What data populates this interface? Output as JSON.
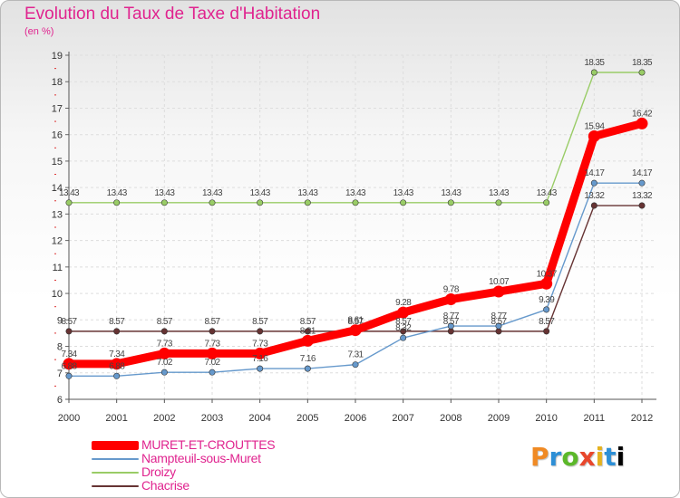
{
  "header": {
    "title": "Evolution du Taux de Taxe d'Habitation",
    "subtitle": "(en %)"
  },
  "logo": {
    "letters": [
      "P",
      "r",
      "o",
      "x",
      "i",
      "t",
      "i"
    ]
  },
  "chart_data": {
    "type": "line",
    "title": "Evolution du Taux de Taxe d'Habitation",
    "subtitle": "(en %)",
    "xlabel": "",
    "ylabel": "",
    "x": [
      "2000",
      "2001",
      "2002",
      "2003",
      "2004",
      "2005",
      "2006",
      "2007",
      "2008",
      "2009",
      "2010",
      "2011",
      "2012"
    ],
    "ylim": [
      6,
      19
    ],
    "yticks": [
      "6",
      "7",
      "8",
      "9",
      "10",
      "11",
      "12",
      "13",
      "14",
      "15",
      "16",
      "17",
      "18",
      "19"
    ],
    "grid": true,
    "legend_position": "bottom-left",
    "series": [
      {
        "name": "MURET-ET-CROUTTES",
        "color": "#ff0000",
        "emphasis": true,
        "values": [
          7.34,
          7.34,
          7.73,
          7.73,
          7.73,
          8.21,
          8.61,
          9.28,
          9.78,
          10.07,
          10.37,
          15.94,
          16.42
        ],
        "labels": [
          "7.34",
          "7.34",
          "7.73",
          "7.73",
          "7.73",
          "8.21",
          "8.61",
          "9.28",
          "9.78",
          "10.07",
          "10.37",
          "15.94",
          "16.42"
        ]
      },
      {
        "name": "Nampteuil-sous-Muret",
        "color": "#6699cc",
        "values": [
          6.88,
          6.88,
          7.02,
          7.02,
          7.16,
          7.16,
          7.31,
          8.32,
          8.77,
          8.77,
          9.39,
          14.17,
          14.17
        ],
        "labels": [
          "6.88",
          "6.88",
          "7.02",
          "7.02",
          "7.16",
          "7.16",
          "7.31",
          "8.32",
          "8.77",
          "8.77",
          "9.39",
          "14.17",
          "14.17"
        ]
      },
      {
        "name": "Droizy",
        "color": "#99cc66",
        "values": [
          13.43,
          13.43,
          13.43,
          13.43,
          13.43,
          13.43,
          13.43,
          13.43,
          13.43,
          13.43,
          13.43,
          18.35,
          18.35
        ],
        "labels": [
          "13.43",
          "13.43",
          "13.43",
          "13.43",
          "13.43",
          "13.43",
          "13.43",
          "13.43",
          "13.43",
          "13.43",
          "13.43",
          "18.35",
          "18.35"
        ]
      },
      {
        "name": "Chacrise",
        "color": "#663333",
        "values": [
          8.57,
          8.57,
          8.57,
          8.57,
          8.57,
          8.57,
          8.57,
          8.57,
          8.57,
          8.57,
          8.57,
          13.32,
          13.32
        ],
        "labels": [
          "8.57",
          "8.57",
          "8.57",
          "8.57",
          "8.57",
          "8.57",
          "8.57",
          "8.57",
          "8.57",
          "8.57",
          "8.57",
          "13.32",
          "13.32"
        ]
      }
    ]
  }
}
